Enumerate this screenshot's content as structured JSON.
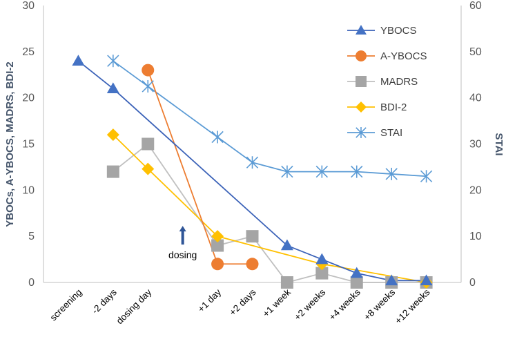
{
  "chart_data": {
    "type": "line",
    "title": "",
    "xlabel": "",
    "ylabel": "YBOCs, A-YBOCS, MADRS, BDI-2",
    "y2label": "STAI",
    "ylim": [
      0,
      30
    ],
    "y2lim": [
      0,
      60
    ],
    "yticks": [
      "0",
      "5",
      "10",
      "15",
      "20",
      "25",
      "30"
    ],
    "y2ticks": [
      "0",
      "10",
      "20",
      "30",
      "40",
      "50",
      "60"
    ],
    "categories": [
      "screening",
      "-2 days",
      "dosing  day",
      "+1 day",
      "+2 days",
      "+1 week",
      "+2 weeks",
      "+4 weeks",
      "+8 weeks",
      "+12 weeks"
    ],
    "category_positions": [
      1,
      2,
      3,
      5,
      6,
      7,
      8,
      9,
      10,
      11
    ],
    "x_range": [
      0,
      12
    ],
    "legend_position": "top-right",
    "series": [
      {
        "name": "YBOCS",
        "axis": "left",
        "color": "#4472C4",
        "line_color": "#3B62B8",
        "marker": "triangle",
        "x": [
          1,
          2,
          7,
          8,
          9,
          10,
          11
        ],
        "values": [
          24,
          21,
          4,
          2.5,
          1,
          0.2,
          0.2
        ]
      },
      {
        "name": "A-YBOCS",
        "axis": "left",
        "color": "#ED7D31",
        "line_color": "#ED7D31",
        "marker": "circle",
        "x": [
          3,
          5,
          6
        ],
        "values": [
          23,
          2,
          2
        ]
      },
      {
        "name": "MADRS",
        "axis": "left",
        "color": "#A5A5A5",
        "line_color": "#BFBFBF",
        "marker": "square",
        "x": [
          2,
          3,
          5,
          6,
          7,
          8,
          9,
          10,
          11
        ],
        "values": [
          12,
          15,
          4,
          5,
          0,
          1,
          0,
          0,
          0
        ]
      },
      {
        "name": "BDI-2",
        "axis": "left",
        "color": "#FFC000",
        "line_color": "#FFC000",
        "marker": "diamond",
        "x": [
          2,
          3,
          5,
          8,
          11
        ],
        "values": [
          16,
          12.3,
          5,
          2,
          0
        ]
      },
      {
        "name": "STAI",
        "axis": "right",
        "color": "#5B9BD5",
        "line_color": "#5B9BD5",
        "marker": "asterisk",
        "x": [
          2,
          3,
          5,
          6,
          7,
          8,
          9,
          10,
          11
        ],
        "values": [
          48,
          42.5,
          31.5,
          26,
          24,
          24,
          24,
          23.5,
          23
        ]
      }
    ],
    "annotations": [
      {
        "text": "dosing",
        "arrow": "up",
        "x": 4,
        "y": 5,
        "color": "#2F5597"
      }
    ]
  }
}
